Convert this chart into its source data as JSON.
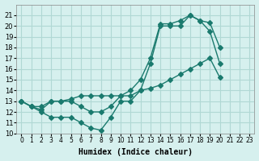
{
  "title": "",
  "xlabel": "Humidex (Indice chaleur)",
  "ylabel": "",
  "background_color": "#d6f0ee",
  "grid_color": "#b0d8d4",
  "line_color": "#1a7a6e",
  "ylim": [
    10,
    22
  ],
  "xlim": [
    -0.5,
    23.5
  ],
  "yticks": [
    10,
    11,
    12,
    13,
    14,
    15,
    16,
    17,
    18,
    19,
    20,
    21
  ],
  "xticks": [
    0,
    1,
    2,
    3,
    4,
    5,
    6,
    7,
    8,
    9,
    10,
    11,
    12,
    13,
    14,
    15,
    16,
    17,
    18,
    19,
    20,
    21,
    22,
    23
  ],
  "xtick_labels": [
    "0",
    "1",
    "2",
    "3",
    "4",
    "5",
    "6",
    "7",
    "8",
    "9",
    "10",
    "11",
    "12",
    "13",
    "14",
    "15",
    "16",
    "17",
    "18",
    "19",
    "20",
    "21",
    "22",
    "23"
  ],
  "series": [
    {
      "x": [
        0,
        1,
        2,
        3,
        4,
        5,
        6,
        7,
        8,
        9,
        10,
        11,
        12,
        13,
        14,
        15,
        16,
        17,
        18,
        19,
        20,
        21,
        22,
        23
      ],
      "y": [
        13,
        12.5,
        12,
        11.5,
        11.5,
        11.5,
        11,
        10.5,
        10.3,
        11.5,
        13,
        13,
        14,
        16.5,
        20,
        20,
        20,
        21,
        20.5,
        19.5,
        16.5,
        null,
        null,
        null
      ]
    },
    {
      "x": [
        0,
        1,
        2,
        3,
        4,
        5,
        6,
        7,
        8,
        9,
        10,
        11,
        12,
        13,
        14,
        15,
        16,
        17,
        18,
        19,
        20,
        21,
        22,
        23
      ],
      "y": [
        13,
        12.5,
        12.2,
        13,
        13,
        13,
        12.5,
        12,
        12,
        12.5,
        13.5,
        14,
        15,
        17,
        20.2,
        20.2,
        20.5,
        21,
        20.5,
        20.3,
        18,
        null,
        null,
        null
      ]
    },
    {
      "x": [
        0,
        1,
        2,
        3,
        4,
        5,
        6,
        7,
        8,
        9,
        10,
        11,
        12,
        13,
        14,
        15,
        16,
        17,
        18,
        19,
        20,
        21,
        22,
        23
      ],
      "y": [
        13,
        12.5,
        12.5,
        13,
        13,
        13.2,
        13.5,
        13.5,
        13.5,
        13.5,
        13.5,
        13.5,
        14,
        14.2,
        14.5,
        15,
        15.5,
        16,
        16.5,
        17,
        15.2,
        null,
        null,
        null
      ]
    }
  ]
}
